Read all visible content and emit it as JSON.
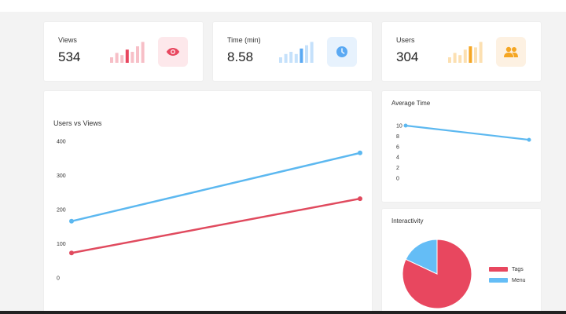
{
  "stats": [
    {
      "label": "Views",
      "value": "534",
      "color": "#e8475f",
      "icon": "eye-icon",
      "badge_bg": "#fde8eb",
      "bars": [
        0.25,
        0.45,
        0.35,
        0.6,
        0.5,
        0.75,
        0.95
      ],
      "highlight": 3
    },
    {
      "label": "Time (min)",
      "value": "8.58",
      "color": "#5aa9f3",
      "icon": "clock-icon",
      "badge_bg": "#e7f2fd",
      "bars": [
        0.25,
        0.4,
        0.5,
        0.4,
        0.65,
        0.8,
        0.95
      ],
      "highlight": 4
    },
    {
      "label": "Users",
      "value": "304",
      "color": "#f5a623",
      "icon": "users-icon",
      "badge_bg": "#fdf1e2",
      "bars": [
        0.25,
        0.45,
        0.35,
        0.6,
        0.75,
        0.7,
        0.95
      ],
      "highlight": 4
    }
  ],
  "charts": {
    "users_vs_views": {
      "title": "Users vs Views",
      "chart_data": {
        "type": "line",
        "x": [
          0,
          1
        ],
        "ylim": [
          0,
          400
        ],
        "yticks": [
          0,
          100,
          200,
          300,
          400
        ],
        "series": [
          {
            "values": [
              166,
              366
            ],
            "color": "#5cb8f0"
          },
          {
            "values": [
              73,
              232
            ],
            "color": "#e04a5e"
          }
        ]
      }
    },
    "average_time": {
      "title": "Average Time",
      "chart_data": {
        "type": "line",
        "x": [
          0,
          1
        ],
        "ylim": [
          0,
          10
        ],
        "yticks": [
          0,
          2,
          4,
          6,
          8,
          10
        ],
        "series": [
          {
            "values": [
              10,
              7.3
            ],
            "color": "#5cb8f0"
          }
        ]
      }
    },
    "interactivity": {
      "title": "Interactivity",
      "chart_data": {
        "type": "pie",
        "slices": [
          {
            "label": "Tags",
            "value": 0.82,
            "color": "#e8475f"
          },
          {
            "label": "Menu",
            "value": 0.18,
            "color": "#64bdf6"
          }
        ]
      }
    }
  }
}
